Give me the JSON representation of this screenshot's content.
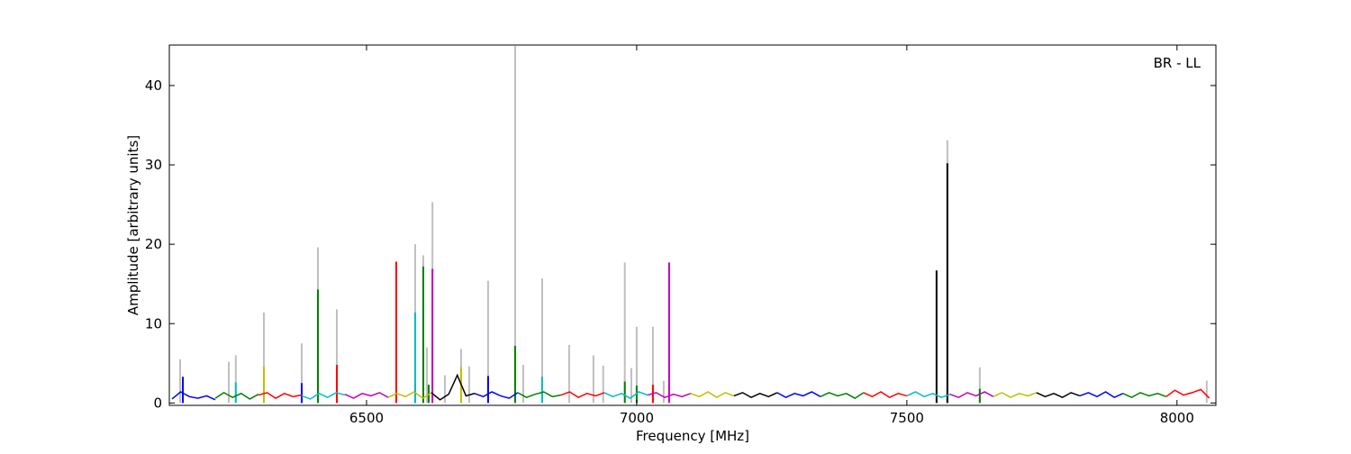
{
  "chart_data": {
    "type": "spectrum",
    "xlabel": "Frequency [MHz]",
    "ylabel": "Amplitude [arbitrary units]",
    "annotation": "BR - LL",
    "xlim": [
      6135,
      8072
    ],
    "ylim": [
      -0.3,
      45.1
    ],
    "xticks": [
      6500,
      7000,
      7500,
      8000
    ],
    "yticks": [
      0,
      10,
      20,
      30,
      40
    ],
    "spikes": [
      {
        "color": "#bfbfbf",
        "x": [
          6155,
          6245,
          6258,
          6310,
          6380,
          6410,
          6445,
          6590,
          6605,
          6612,
          6622,
          6645,
          6675,
          6690,
          6725,
          6775,
          6790,
          6825,
          6875,
          6920,
          6938,
          6978,
          6990,
          7000,
          7030,
          7050,
          7575,
          7635,
          8055
        ],
        "values": [
          5.5,
          5.2,
          6.0,
          11.4,
          7.5,
          19.6,
          11.8,
          20,
          18.6,
          7,
          25.3,
          3.5,
          6.8,
          4.6,
          15.4,
          45,
          4.8,
          15.7,
          7.3,
          6.0,
          4.7,
          17.7,
          4.4,
          9.6,
          9.6,
          2.8,
          33.1,
          4.5,
          2.8
        ]
      },
      {
        "color": "#0000ff",
        "x": [
          6160,
          6380,
          6590,
          6725
        ],
        "values": [
          3.3,
          2.5,
          2.2,
          3.4
        ]
      },
      {
        "color": "#008000",
        "x": [
          6410,
          6605,
          6615,
          6775,
          6978,
          7000,
          7635
        ],
        "values": [
          14.3,
          17.2,
          2.3,
          7.2,
          2.7,
          2.2,
          1.8
        ]
      },
      {
        "color": "#ff0000",
        "x": [
          6445,
          6555,
          7030
        ],
        "values": [
          4.8,
          17.8,
          2.3
        ]
      },
      {
        "color": "#00bfbf",
        "x": [
          6258,
          6590,
          6825
        ],
        "values": [
          2.6,
          11.4,
          3.3
        ]
      },
      {
        "color": "#bf00bf",
        "x": [
          6622,
          7060
        ],
        "values": [
          16.9,
          17.7
        ]
      },
      {
        "color": "#bfbf00",
        "x": [
          6310,
          6675
        ],
        "values": [
          4.6,
          4.5
        ]
      },
      {
        "color": "#000000",
        "x": [
          7555,
          7575
        ],
        "values": [
          16.7,
          30.2
        ]
      }
    ],
    "series": [
      {
        "color": "#0000ff",
        "x": [
          6140,
          6156,
          6172,
          6188,
          6204,
          6220
        ],
        "values": [
          0.5,
          1.4,
          0.8,
          0.6,
          0.9,
          0.4
        ]
      },
      {
        "color": "#008000",
        "x": [
          6220,
          6236,
          6252,
          6268,
          6284,
          6300
        ],
        "values": [
          0.6,
          1.3,
          0.7,
          1.2,
          0.5,
          1.1
        ]
      },
      {
        "color": "#ff0000",
        "x": [
          6300,
          6316,
          6332,
          6348,
          6364,
          6380
        ],
        "values": [
          1.0,
          1.3,
          0.6,
          1.2,
          0.8,
          1.0
        ]
      },
      {
        "color": "#00bfbf",
        "x": [
          6380,
          6396,
          6412,
          6428,
          6444,
          6460
        ],
        "values": [
          0.9,
          0.5,
          1.2,
          0.7,
          1.3,
          1.0
        ]
      },
      {
        "color": "#bf00bf",
        "x": [
          6460,
          6476,
          6492,
          6508,
          6524,
          6540
        ],
        "values": [
          1.1,
          0.6,
          1.2,
          0.9,
          1.3,
          0.7
        ]
      },
      {
        "color": "#bfbf00",
        "x": [
          6540,
          6556,
          6572,
          6588,
          6604,
          6620
        ],
        "values": [
          0.7,
          1.2,
          0.8,
          1.4,
          0.6,
          1.3
        ]
      },
      {
        "color": "#000000",
        "x": [
          6620,
          6636,
          6652,
          6668,
          6684,
          6700
        ],
        "values": [
          1.3,
          0.4,
          1.1,
          3.5,
          0.9,
          1.2
        ]
      },
      {
        "color": "#0000ff",
        "x": [
          6700,
          6716,
          6732,
          6748,
          6764,
          6780
        ],
        "values": [
          1.2,
          0.8,
          1.4,
          0.9,
          0.6,
          1.3
        ]
      },
      {
        "color": "#008000",
        "x": [
          6780,
          6796,
          6812,
          6828,
          6844,
          6860
        ],
        "values": [
          1.3,
          0.7,
          1.1,
          1.4,
          0.8,
          1.0
        ]
      },
      {
        "color": "#ff0000",
        "x": [
          6860,
          6876,
          6892,
          6908,
          6924,
          6940
        ],
        "values": [
          1.0,
          1.4,
          0.7,
          1.2,
          0.9,
          1.3
        ]
      },
      {
        "color": "#00bfbf",
        "x": [
          6940,
          6956,
          6972,
          6988,
          7004,
          7020
        ],
        "values": [
          1.3,
          0.8,
          1.2,
          0.6,
          1.4,
          1.0
        ]
      },
      {
        "color": "#bf00bf",
        "x": [
          7020,
          7036,
          7052,
          7068,
          7084,
          7100
        ],
        "values": [
          1.0,
          1.3,
          0.7,
          1.1,
          0.8,
          1.2
        ]
      },
      {
        "color": "#bfbf00",
        "x": [
          7100,
          7116,
          7132,
          7148,
          7164,
          7180
        ],
        "values": [
          1.2,
          0.8,
          1.4,
          0.7,
          1.3,
          0.9
        ]
      },
      {
        "color": "#000000",
        "x": [
          7180,
          7196,
          7212,
          7228,
          7244,
          7260
        ],
        "values": [
          0.9,
          1.3,
          0.7,
          1.2,
          0.8,
          1.3
        ]
      },
      {
        "color": "#0000ff",
        "x": [
          7260,
          7276,
          7292,
          7308,
          7324,
          7340
        ],
        "values": [
          1.3,
          0.7,
          1.2,
          0.9,
          1.4,
          0.8
        ]
      },
      {
        "color": "#008000",
        "x": [
          7340,
          7356,
          7372,
          7388,
          7404,
          7420
        ],
        "values": [
          0.8,
          1.3,
          0.9,
          1.2,
          0.6,
          1.3
        ]
      },
      {
        "color": "#ff0000",
        "x": [
          7420,
          7436,
          7452,
          7468,
          7484,
          7500
        ],
        "values": [
          1.3,
          0.8,
          1.4,
          0.7,
          1.2,
          0.9
        ]
      },
      {
        "color": "#00bfbf",
        "x": [
          7500,
          7516,
          7532,
          7548,
          7564,
          7580
        ],
        "values": [
          0.9,
          1.4,
          0.8,
          1.2,
          0.7,
          1.1
        ]
      },
      {
        "color": "#bf00bf",
        "x": [
          7580,
          7596,
          7612,
          7628,
          7644,
          7660
        ],
        "values": [
          1.1,
          0.7,
          1.3,
          0.9,
          1.4,
          0.8
        ]
      },
      {
        "color": "#bfbf00",
        "x": [
          7660,
          7676,
          7692,
          7708,
          7724,
          7740
        ],
        "values": [
          0.8,
          1.3,
          0.7,
          1.2,
          0.9,
          1.3
        ]
      },
      {
        "color": "#000000",
        "x": [
          7740,
          7756,
          7772,
          7788,
          7804,
          7820
        ],
        "values": [
          1.3,
          0.8,
          1.2,
          0.7,
          1.3,
          0.9
        ]
      },
      {
        "color": "#0000ff",
        "x": [
          7820,
          7836,
          7852,
          7868,
          7884,
          7900
        ],
        "values": [
          0.9,
          1.3,
          0.8,
          1.4,
          0.7,
          1.2
        ]
      },
      {
        "color": "#008000",
        "x": [
          7900,
          7916,
          7932,
          7948,
          7964,
          7980
        ],
        "values": [
          1.2,
          0.7,
          1.3,
          0.9,
          1.2,
          0.8
        ]
      },
      {
        "color": "#ff0000",
        "x": [
          7980,
          7996,
          8012,
          8028,
          8044,
          8060
        ],
        "values": [
          0.8,
          1.6,
          1.0,
          1.3,
          1.7,
          0.6
        ]
      }
    ]
  }
}
